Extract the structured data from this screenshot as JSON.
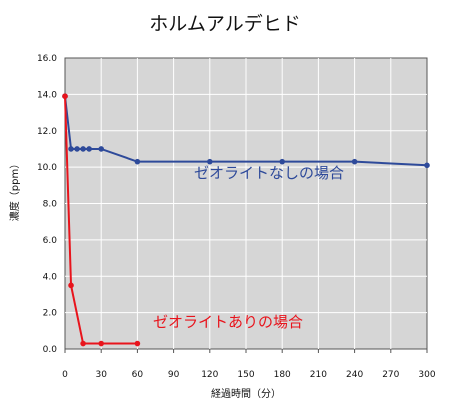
{
  "chart_data": {
    "type": "line",
    "title": "ホルムアルデヒド",
    "xlabel": "経過時間（分）",
    "ylabel": "濃度（ppm）",
    "xlim": [
      0,
      300
    ],
    "ylim": [
      0,
      16
    ],
    "x_ticks": [
      0,
      30,
      60,
      90,
      120,
      150,
      180,
      210,
      240,
      270,
      300
    ],
    "y_ticks": [
      "0.0",
      "2.0",
      "4.0",
      "6.0",
      "8.0",
      "10.0",
      "12.0",
      "14.0",
      "16.0"
    ],
    "grid": true,
    "series": [
      {
        "name": "ゼオライトなしの場合",
        "color": "#2e4a9a",
        "points": [
          [
            0,
            13.9
          ],
          [
            5,
            11.0
          ],
          [
            10,
            11.0
          ],
          [
            15,
            11.0
          ],
          [
            20,
            11.0
          ],
          [
            30,
            11.0
          ],
          [
            60,
            10.3
          ],
          [
            120,
            10.3
          ],
          [
            180,
            10.3
          ],
          [
            240,
            10.3
          ],
          [
            300,
            10.1
          ]
        ]
      },
      {
        "name": "ゼオライトありの場合",
        "color": "#e8141c",
        "points": [
          [
            0,
            13.9
          ],
          [
            5,
            3.5
          ],
          [
            15,
            0.3
          ],
          [
            30,
            0.3
          ],
          [
            60,
            0.3
          ]
        ]
      }
    ]
  }
}
